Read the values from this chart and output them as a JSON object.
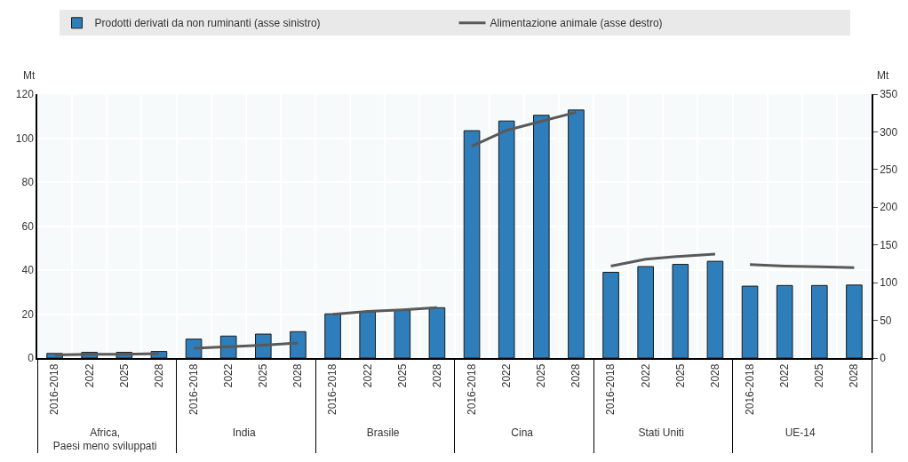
{
  "chart_data": {
    "type": "bar",
    "categories": [
      "2016-2018",
      "2022",
      "2025",
      "2028",
      "2016-2018",
      "2022",
      "2025",
      "2028",
      "2016-2018",
      "2022",
      "2025",
      "2028",
      "2016-2018",
      "2022",
      "2025",
      "2028",
      "2016-2018",
      "2022",
      "2025",
      "2028",
      "2016-2018",
      "2022",
      "2025",
      "2028"
    ],
    "annotations": [
      "Africa,\nPaesi meno sviluppati",
      "India",
      "Brasile",
      "Cina",
      "Stati Uniti",
      "UE-14"
    ],
    "ylabel": "Mt",
    "y2label": "Mt",
    "series": [
      {
        "name": "Prodotti derivati da non ruminanti (asse sinistro)",
        "color": "#2e7ebb",
        "values": [
          2.1,
          2.6,
          2.6,
          3.0,
          8.6,
          10.0,
          10.9,
          12.0,
          20.1,
          21.0,
          21.8,
          22.9,
          103.4,
          107.8,
          110.4,
          112.8,
          39.0,
          41.6,
          42.6,
          44.0,
          32.7,
          33.0,
          33.0,
          33.2
        ]
      },
      {
        "name": "Alimentazione animale (asse destro)",
        "type": "line",
        "axis": "y2",
        "color": "#595959",
        "values": [
          4,
          5,
          5,
          6,
          13,
          15,
          17,
          20,
          58,
          62,
          64,
          67,
          281,
          302,
          314,
          326,
          122,
          131,
          135,
          138,
          124,
          122,
          121,
          120
        ]
      }
    ],
    "ylim": [
      0,
      120
    ],
    "yticks": [
      0,
      20,
      40,
      60,
      80,
      100,
      120
    ],
    "y2lim": [
      0,
      350
    ],
    "y2ticks": [
      0,
      50,
      100,
      150,
      200,
      250,
      300,
      350
    ],
    "grid": true,
    "legend": "top"
  }
}
